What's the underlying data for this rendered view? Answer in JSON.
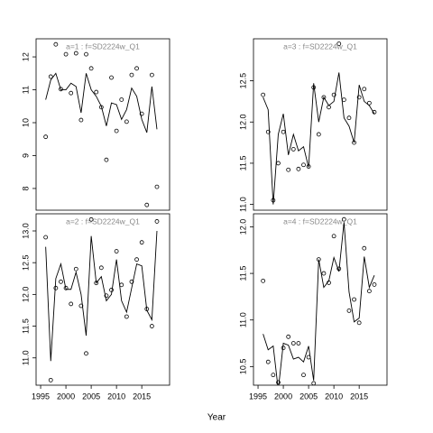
{
  "x_label": "Year",
  "chart_data": [
    {
      "type": "line",
      "title": "a=1  :  f=SD2224w_Q1",
      "x": [
        1996,
        1997,
        1998,
        1999,
        2000,
        2001,
        2002,
        2003,
        2004,
        2005,
        2006,
        2007,
        2008,
        2009,
        2010,
        2011,
        2012,
        2013,
        2014,
        2015,
        2016,
        2017,
        2018
      ],
      "series": [
        {
          "style": "points",
          "color": "#000000",
          "values": [
            9.57,
            11.4,
            12.38,
            11.02,
            12.08,
            10.9,
            12.11,
            10.08,
            12.08,
            11.65,
            10.93,
            10.47,
            8.87,
            11.37,
            9.75,
            10.7,
            10.03,
            11.45,
            11.65,
            10.27,
            7.5,
            11.45,
            8.05
          ]
        },
        {
          "style": "line",
          "color": "#000000",
          "values": [
            10.7,
            11.3,
            11.5,
            11.0,
            11.0,
            11.2,
            11.1,
            10.3,
            11.5,
            11.0,
            10.8,
            10.5,
            9.9,
            10.6,
            10.55,
            10.1,
            10.4,
            11.05,
            10.8,
            10.1,
            9.7,
            11.1,
            9.8
          ]
        }
      ],
      "xlim": [
        1994.1,
        2020.5
      ],
      "ylim": [
        7.34,
        12.55
      ],
      "yticks": [
        8,
        9,
        10,
        11,
        12
      ]
    },
    {
      "type": "line",
      "title": "a=3  :  f=SD2224w_Q1",
      "x": [
        1996,
        1997,
        1998,
        1999,
        2000,
        2001,
        2002,
        2003,
        2004,
        2005,
        2006,
        2007,
        2008,
        2009,
        2010,
        2011,
        2012,
        2013,
        2014,
        2015,
        2016,
        2017,
        2018
      ],
      "series": [
        {
          "style": "points",
          "color": "#000000",
          "values": [
            12.33,
            11.88,
            11.05,
            11.5,
            11.88,
            11.42,
            11.67,
            11.43,
            11.48,
            11.46,
            12.42,
            11.85,
            12.3,
            12.18,
            12.33,
            12.95,
            12.27,
            12.05,
            11.75,
            12.3,
            12.4,
            12.23,
            12.12
          ]
        },
        {
          "style": "line",
          "color": "#000000",
          "values": [
            12.3,
            12.15,
            11.0,
            11.85,
            12.1,
            11.6,
            11.85,
            11.65,
            11.7,
            11.45,
            12.47,
            12.0,
            12.3,
            12.2,
            12.25,
            12.6,
            12.05,
            11.95,
            11.75,
            12.45,
            12.25,
            12.2,
            12.1
          ]
        }
      ],
      "xlim": [
        1994.1,
        2020.5
      ],
      "ylim": [
        10.93,
        13.01
      ],
      "yticks": [
        {
          "value": 11,
          "label": "11.0"
        },
        11.5,
        {
          "value": 12,
          "label": "12.0"
        },
        12.5
      ]
    },
    {
      "type": "line",
      "title": "a=2  :  f=SD2224w_Q1",
      "x": [
        1996,
        1997,
        1998,
        1999,
        2000,
        2001,
        2002,
        2003,
        2004,
        2005,
        2006,
        2007,
        2008,
        2009,
        2010,
        2011,
        2012,
        2013,
        2014,
        2015,
        2016,
        2017,
        2018
      ],
      "series": [
        {
          "style": "points",
          "color": "#000000",
          "values": [
            12.9,
            10.65,
            12.1,
            12.2,
            12.1,
            11.85,
            12.4,
            11.82,
            11.07,
            13.18,
            12.18,
            12.42,
            11.98,
            12.07,
            12.68,
            12.15,
            11.65,
            12.2,
            12.55,
            12.82,
            11.77,
            11.5,
            13.15
          ]
        },
        {
          "style": "line",
          "color": "#000000",
          "values": [
            12.75,
            10.95,
            12.25,
            12.48,
            12.08,
            12.08,
            12.35,
            12.0,
            11.35,
            12.92,
            12.18,
            12.28,
            11.9,
            12.0,
            12.55,
            11.9,
            11.72,
            12.1,
            12.48,
            12.45,
            11.75,
            11.6,
            13.0
          ]
        }
      ],
      "xlim": [
        1994.1,
        2020.5
      ],
      "xticks": [
        1995,
        2000,
        2005,
        2010,
        2015
      ],
      "ylim": [
        10.57,
        13.27
      ],
      "yticks": [
        {
          "value": 11,
          "label": "11.0"
        },
        11.5,
        {
          "value": 12,
          "label": "12.0"
        },
        12.5,
        {
          "value": 13,
          "label": "13.0"
        }
      ]
    },
    {
      "type": "line",
      "title": "a=4  :  f=SD2224w_Q1",
      "x": [
        1996,
        1997,
        1998,
        1999,
        2000,
        2001,
        2002,
        2003,
        2004,
        2005,
        2006,
        2007,
        2008,
        2009,
        2010,
        2011,
        2012,
        2013,
        2014,
        2015,
        2016,
        2017,
        2018
      ],
      "series": [
        {
          "style": "points",
          "color": "#000000",
          "values": [
            11.42,
            10.55,
            10.41,
            10.33,
            10.7,
            10.82,
            10.75,
            10.75,
            10.41,
            10.6,
            10.32,
            11.65,
            11.5,
            11.4,
            11.9,
            11.55,
            12.08,
            11.1,
            11.22,
            10.97,
            11.77,
            11.31,
            11.38
          ]
        },
        {
          "style": "line",
          "color": "#000000",
          "values": [
            10.85,
            10.68,
            10.72,
            10.25,
            10.75,
            10.73,
            10.58,
            10.6,
            10.55,
            10.72,
            10.35,
            11.65,
            11.35,
            11.42,
            11.67,
            11.52,
            12.05,
            11.3,
            10.98,
            11.02,
            11.68,
            11.35,
            11.48
          ]
        }
      ],
      "xlim": [
        1994.1,
        2020.5
      ],
      "xticks": [
        1995,
        2000,
        2005,
        2010,
        2015
      ],
      "ylim": [
        10.3,
        12.14
      ],
      "yticks": [
        10.5,
        {
          "value": 11,
          "label": "11.0"
        },
        11.5,
        {
          "value": 12,
          "label": "12.0"
        }
      ]
    }
  ]
}
